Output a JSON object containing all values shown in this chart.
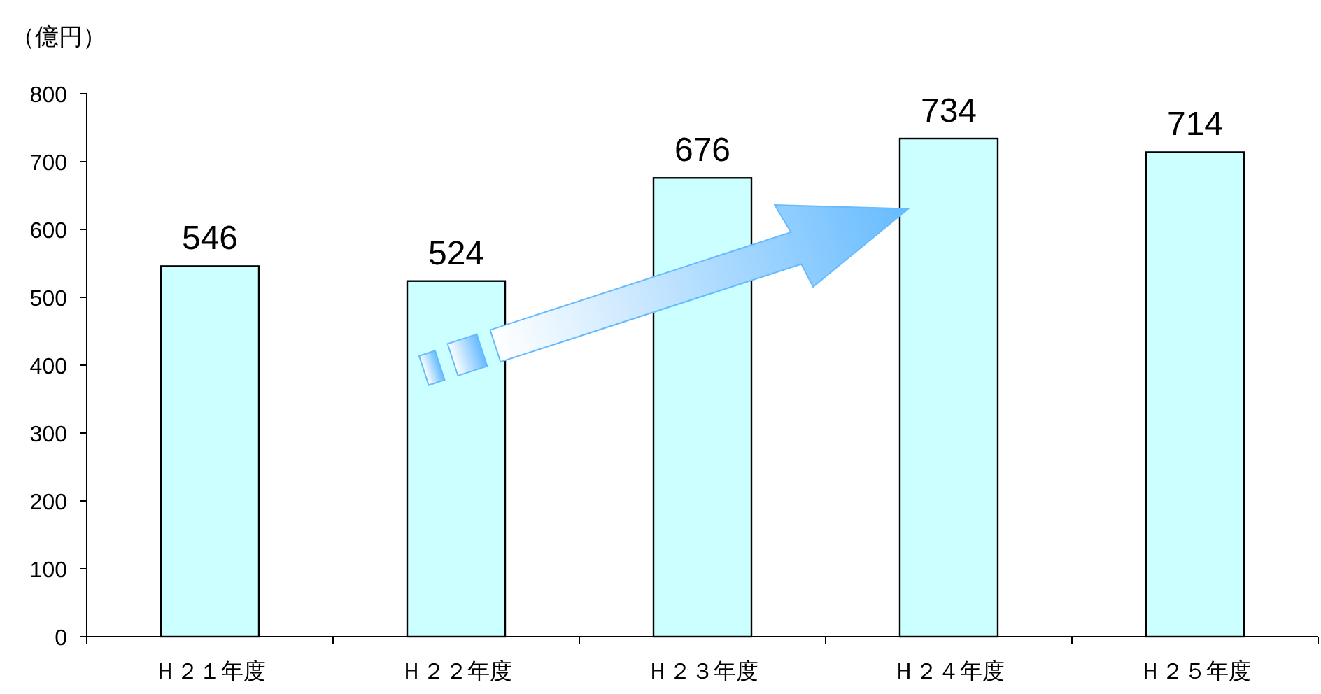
{
  "chart_data": {
    "type": "bar",
    "ylabel": "（億円）",
    "categories": [
      "Ｈ２１年度",
      "Ｈ２２年度",
      "Ｈ２３年度",
      "Ｈ２４年度",
      "Ｈ２５年度"
    ],
    "values": [
      546,
      524,
      676,
      734,
      714
    ],
    "color": "#ccffff",
    "ylim": [
      0,
      800
    ],
    "yticks": [
      0,
      100,
      200,
      300,
      400,
      500,
      600,
      700,
      800
    ],
    "data_labels": true
  }
}
